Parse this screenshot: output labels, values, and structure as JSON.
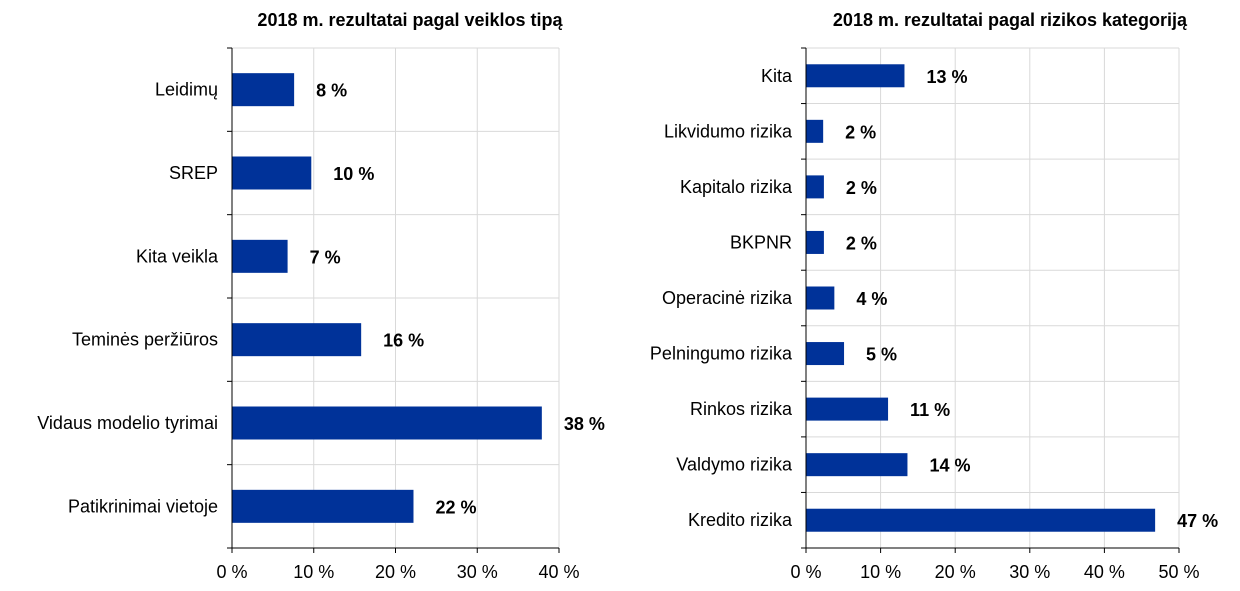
{
  "colors": {
    "bar": "#003299",
    "grid": "#d9d9d9",
    "axis": "#000000"
  },
  "chart_data": [
    {
      "type": "bar",
      "orientation": "horizontal",
      "title": "2018 m. rezultatai pagal veiklos tipą",
      "categories": [
        "Leidimų",
        "SREP",
        "Kita veikla",
        "Teminės peržiūros",
        "Vidaus modelio tyrimai",
        "Patikrinimai vietoje"
      ],
      "values": [
        7.6,
        9.7,
        6.8,
        15.8,
        37.9,
        22.2
      ],
      "data_labels": [
        "8 %",
        "10 %",
        "7 %",
        "16 %",
        "38 %",
        "22 %"
      ],
      "xlim": [
        0,
        40
      ],
      "ticks": [
        0,
        10,
        20,
        30,
        40
      ],
      "tick_labels": [
        "0 %",
        "10 %",
        "20 %",
        "30 %",
        "40 %"
      ],
      "grid": true,
      "xlabel": "",
      "ylabel": ""
    },
    {
      "type": "bar",
      "orientation": "horizontal",
      "title": "2018 m. rezultatai pagal rizikos kategoriją",
      "categories": [
        "Kita",
        "Likvidumo rizika",
        "Kapitalo rizika",
        "BKPNR",
        "Operacinė rizika",
        "Pelningumo rizika",
        "Rinkos rizika",
        "Valdymo rizika",
        "Kredito rizika"
      ],
      "values": [
        13.2,
        2.3,
        2.4,
        2.4,
        3.8,
        5.1,
        11.0,
        13.6,
        46.8
      ],
      "data_labels": [
        "13 %",
        "2 %",
        "2 %",
        "2 %",
        "4 %",
        "5 %",
        "11 %",
        "14 %",
        "47 %"
      ],
      "xlim": [
        0,
        50
      ],
      "ticks": [
        0,
        10,
        20,
        30,
        40,
        50
      ],
      "tick_labels": [
        "0 %",
        "10 %",
        "20 %",
        "30 %",
        "40 %",
        "50 %"
      ],
      "grid": true,
      "xlabel": "",
      "ylabel": ""
    }
  ]
}
